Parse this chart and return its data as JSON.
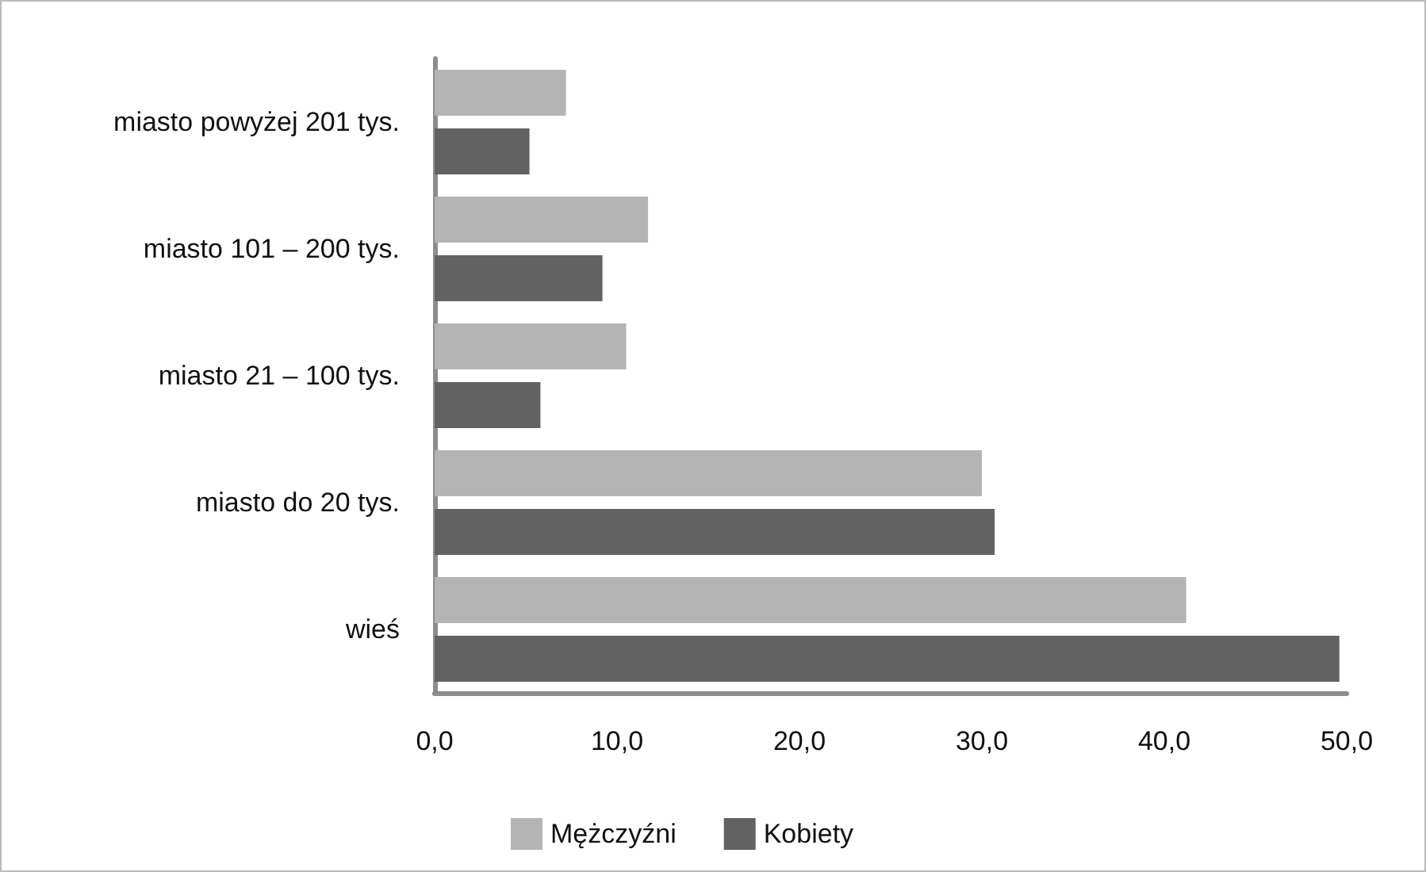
{
  "chart_data": {
    "type": "bar",
    "orientation": "horizontal",
    "categories": [
      "miasto powyżej 201 tys.",
      "miasto 101 – 200 tys.",
      "miasto 21 – 100 tys.",
      "miasto do 20 tys.",
      "wieś"
    ],
    "series": [
      {
        "name": "Mężczyźni",
        "color": "#b3b4b3",
        "values": [
          7.2,
          11.7,
          10.5,
          30.0,
          41.2
        ]
      },
      {
        "name": "Kobiety",
        "color": "#626262",
        "values": [
          5.2,
          9.2,
          5.8,
          30.7,
          49.6
        ]
      }
    ],
    "xlim": [
      0,
      50
    ],
    "xticks": [
      {
        "value": 0,
        "label": "0,0"
      },
      {
        "value": 10,
        "label": "10,0"
      },
      {
        "value": 20,
        "label": "20,0"
      },
      {
        "value": 30,
        "label": "30,0"
      },
      {
        "value": 40,
        "label": "40,0"
      },
      {
        "value": 50,
        "label": "50,0"
      }
    ],
    "grid": false,
    "legend": "bottom"
  }
}
